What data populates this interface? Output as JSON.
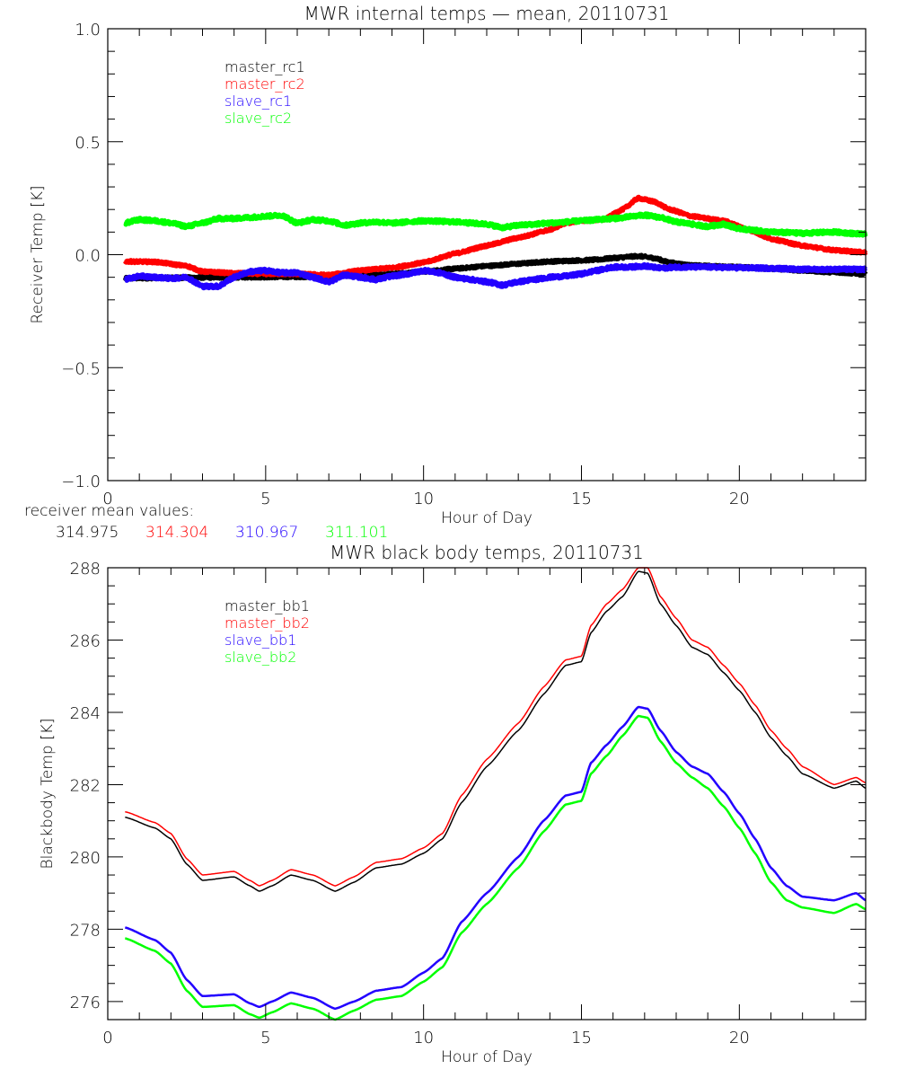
{
  "chart_data": [
    {
      "type": "line",
      "title": "MWR internal temps — mean, 20110731",
      "xlabel": "Hour of Day",
      "ylabel": "Receiver Temp [K]",
      "xlim": [
        0,
        24
      ],
      "ylim": [
        -1.0,
        1.0
      ],
      "xticks": [
        0,
        5,
        10,
        15,
        20
      ],
      "xtick_labels": [
        "0",
        "5",
        "10",
        "15",
        "20"
      ],
      "x_minor_step": 1,
      "yticks": [
        -1.0,
        -0.5,
        0.0,
        0.5,
        1.0
      ],
      "ytick_labels": [
        "−1.0",
        "−0.5",
        "0.0",
        "0.5",
        "1.0"
      ],
      "y_minor_step": 0.1,
      "grid": false,
      "legend_position": "top-left",
      "noise": true,
      "series": [
        {
          "name": "master_rc1",
          "color": "#000000",
          "noise_amp": 0.006,
          "x": [
            0.55,
            2,
            4,
            6,
            7,
            8,
            9,
            10,
            11,
            12,
            13,
            14,
            15,
            15.5,
            16,
            16.8,
            17.3,
            17.8,
            18.5,
            20,
            21,
            22,
            23,
            24
          ],
          "y": [
            -0.105,
            -0.102,
            -0.1,
            -0.098,
            -0.096,
            -0.092,
            -0.085,
            -0.075,
            -0.062,
            -0.05,
            -0.04,
            -0.03,
            -0.025,
            -0.022,
            -0.015,
            -0.006,
            -0.015,
            -0.035,
            -0.048,
            -0.055,
            -0.062,
            -0.07,
            -0.078,
            -0.085
          ]
        },
        {
          "name": "master_rc2",
          "color": "#FF0000",
          "noise_amp": 0.006,
          "x": [
            0.55,
            1.5,
            2.5,
            3,
            4,
            5,
            6,
            7,
            8,
            9,
            10,
            11,
            12,
            13,
            14,
            14.5,
            15,
            15.7,
            16.3,
            16.8,
            17.3,
            17.8,
            18.5,
            19.5,
            20.3,
            21,
            22,
            23,
            24
          ],
          "y": [
            -0.03,
            -0.032,
            -0.05,
            -0.075,
            -0.082,
            -0.085,
            -0.085,
            -0.09,
            -0.07,
            -0.058,
            -0.035,
            0.005,
            0.04,
            0.075,
            0.11,
            0.14,
            0.15,
            0.155,
            0.2,
            0.25,
            0.235,
            0.2,
            0.17,
            0.15,
            0.11,
            0.07,
            0.04,
            0.02,
            0.01
          ]
        },
        {
          "name": "slave_rc1",
          "color": "#2200FF",
          "noise_amp": 0.008,
          "x": [
            0.55,
            1,
            1.5,
            2,
            2.5,
            3,
            3.5,
            4,
            4.5,
            5,
            5.5,
            6,
            6.5,
            7,
            7.5,
            8,
            8.5,
            9,
            9.5,
            10,
            10.5,
            11,
            11.5,
            12,
            12.5,
            13,
            13.5,
            14,
            14.5,
            15,
            15.5,
            16,
            16.5,
            17,
            17.5,
            18,
            19,
            20,
            21,
            22,
            23,
            24
          ],
          "y": [
            -0.11,
            -0.095,
            -0.1,
            -0.105,
            -0.1,
            -0.14,
            -0.14,
            -0.1,
            -0.075,
            -0.07,
            -0.08,
            -0.08,
            -0.1,
            -0.12,
            -0.09,
            -0.1,
            -0.11,
            -0.095,
            -0.085,
            -0.07,
            -0.08,
            -0.1,
            -0.11,
            -0.12,
            -0.135,
            -0.12,
            -0.11,
            -0.1,
            -0.095,
            -0.085,
            -0.07,
            -0.055,
            -0.055,
            -0.05,
            -0.06,
            -0.055,
            -0.055,
            -0.058,
            -0.06,
            -0.065,
            -0.065,
            -0.065
          ]
        },
        {
          "name": "slave_rc2",
          "color": "#00FF00",
          "noise_amp": 0.008,
          "x": [
            0.55,
            1,
            1.5,
            2,
            2.5,
            3,
            3.5,
            4,
            4.5,
            5,
            5.5,
            6,
            6.5,
            7,
            7.5,
            8,
            8.5,
            9,
            10,
            11,
            12,
            12.5,
            13,
            14,
            15,
            16,
            17,
            17.5,
            18,
            19,
            19.5,
            20,
            21,
            22,
            23,
            24
          ],
          "y": [
            0.14,
            0.155,
            0.15,
            0.14,
            0.125,
            0.14,
            0.16,
            0.16,
            0.165,
            0.17,
            0.175,
            0.14,
            0.155,
            0.15,
            0.13,
            0.14,
            0.145,
            0.14,
            0.15,
            0.145,
            0.135,
            0.12,
            0.13,
            0.14,
            0.15,
            0.16,
            0.175,
            0.165,
            0.145,
            0.125,
            0.135,
            0.115,
            0.1,
            0.095,
            0.1,
            0.09
          ]
        }
      ],
      "annotation": {
        "label": "receiver mean values:",
        "values": [
          {
            "text": "314.975",
            "color": "#000000"
          },
          {
            "text": "314.304",
            "color": "#FF0000"
          },
          {
            "text": "310.967",
            "color": "#2200FF"
          },
          {
            "text": "311.101",
            "color": "#00FF00"
          }
        ]
      }
    },
    {
      "type": "line",
      "title": "MWR black body temps, 20110731",
      "xlabel": "Hour of Day",
      "ylabel": "Blackbody Temp [K]",
      "xlim": [
        0,
        24
      ],
      "ylim": [
        275.5,
        288
      ],
      "xticks": [
        0,
        5,
        10,
        15,
        20
      ],
      "xtick_labels": [
        "0",
        "5",
        "10",
        "15",
        "20"
      ],
      "x_minor_step": 1,
      "yticks": [
        276,
        278,
        280,
        282,
        284,
        286,
        288
      ],
      "ytick_labels": [
        "276",
        "278",
        "280",
        "282",
        "284",
        "286",
        "288"
      ],
      "y_minor_step": 0.5,
      "grid": false,
      "legend_position": "top-left",
      "noise": false,
      "series": [
        {
          "name": "master_bb1",
          "color": "#000000",
          "x": [
            0.55,
            1.5,
            2,
            2.5,
            3,
            4,
            4.5,
            4.8,
            5.2,
            5.8,
            6.5,
            7.2,
            7.8,
            8.5,
            9.3,
            10,
            10.6,
            11.2,
            12,
            13,
            13.8,
            14.5,
            15,
            15.3,
            15.8,
            16.3,
            16.8,
            17.1,
            17.5,
            18,
            18.5,
            19,
            19.5,
            20,
            20.5,
            21,
            21.5,
            22,
            23,
            23.7,
            24
          ],
          "y": [
            281.1,
            280.8,
            280.5,
            279.8,
            279.35,
            279.45,
            279.2,
            279.05,
            279.2,
            279.5,
            279.35,
            279.05,
            279.3,
            279.7,
            279.8,
            280.1,
            280.5,
            281.5,
            282.5,
            283.5,
            284.5,
            285.3,
            285.4,
            286.2,
            286.8,
            287.2,
            287.9,
            287.85,
            287.0,
            286.4,
            285.8,
            285.6,
            285.1,
            284.6,
            284.0,
            283.3,
            282.8,
            282.3,
            281.9,
            282.1,
            281.9
          ]
        },
        {
          "name": "master_bb2",
          "color": "#FF0000",
          "x": [
            0.55,
            1.5,
            2,
            2.5,
            3,
            4,
            4.5,
            4.8,
            5.2,
            5.8,
            6.5,
            7.2,
            7.8,
            8.5,
            9.3,
            10,
            10.6,
            11.2,
            12,
            13,
            13.8,
            14.5,
            15,
            15.3,
            15.8,
            16.3,
            16.8,
            17.1,
            17.5,
            18,
            18.5,
            19,
            19.5,
            20,
            20.5,
            21,
            21.5,
            22,
            23,
            23.7,
            24
          ],
          "y": [
            281.25,
            280.95,
            280.65,
            279.95,
            279.5,
            279.6,
            279.35,
            279.2,
            279.35,
            279.65,
            279.5,
            279.2,
            279.45,
            279.85,
            279.95,
            280.25,
            280.65,
            281.7,
            282.7,
            283.7,
            284.7,
            285.45,
            285.55,
            286.4,
            287.0,
            287.4,
            288.0,
            288.0,
            287.2,
            286.6,
            286.0,
            285.8,
            285.3,
            284.8,
            284.2,
            283.5,
            283.0,
            282.5,
            282.0,
            282.2,
            282.05
          ]
        },
        {
          "name": "slave_bb1",
          "color": "#2200FF",
          "x": [
            0.55,
            1.5,
            2,
            2.5,
            3,
            4,
            4.5,
            4.8,
            5.2,
            5.8,
            6.5,
            7.2,
            7.8,
            8.5,
            9.3,
            10,
            10.6,
            11.2,
            12,
            13,
            13.8,
            14.5,
            15,
            15.3,
            15.8,
            16.3,
            16.8,
            17.1,
            17.5,
            18,
            18.5,
            19,
            19.5,
            20,
            20.5,
            21,
            21.5,
            22,
            23,
            23.7,
            24
          ],
          "y": [
            278.05,
            277.7,
            277.35,
            276.6,
            276.15,
            276.2,
            275.95,
            275.85,
            276.0,
            276.25,
            276.1,
            275.8,
            276.0,
            276.3,
            276.4,
            276.8,
            277.2,
            278.2,
            279.0,
            280.0,
            281.0,
            281.7,
            281.8,
            282.6,
            283.1,
            283.6,
            284.15,
            284.1,
            283.5,
            282.9,
            282.5,
            282.3,
            281.8,
            281.2,
            280.5,
            279.7,
            279.2,
            278.9,
            278.8,
            279.0,
            278.8
          ]
        },
        {
          "name": "slave_bb2",
          "color": "#00FF00",
          "x": [
            0.55,
            1.5,
            2,
            2.5,
            3,
            4,
            4.5,
            4.8,
            5.2,
            5.8,
            6.5,
            7.2,
            7.8,
            8.5,
            9.3,
            10,
            10.6,
            11.2,
            12,
            13,
            13.8,
            14.5,
            15,
            15.3,
            15.8,
            16.3,
            16.8,
            17.1,
            17.5,
            18,
            18.5,
            19,
            19.5,
            20,
            20.5,
            21,
            21.5,
            22,
            23,
            23.7,
            24
          ],
          "y": [
            277.75,
            277.4,
            277.05,
            276.3,
            275.85,
            275.9,
            275.65,
            275.55,
            275.7,
            275.95,
            275.8,
            275.5,
            275.75,
            276.05,
            276.15,
            276.55,
            276.95,
            277.9,
            278.7,
            279.7,
            280.7,
            281.45,
            281.55,
            282.3,
            282.8,
            283.35,
            283.9,
            283.85,
            283.2,
            282.6,
            282.2,
            281.9,
            281.4,
            280.8,
            280.1,
            279.3,
            278.8,
            278.6,
            278.45,
            278.7,
            278.55
          ]
        }
      ]
    }
  ]
}
